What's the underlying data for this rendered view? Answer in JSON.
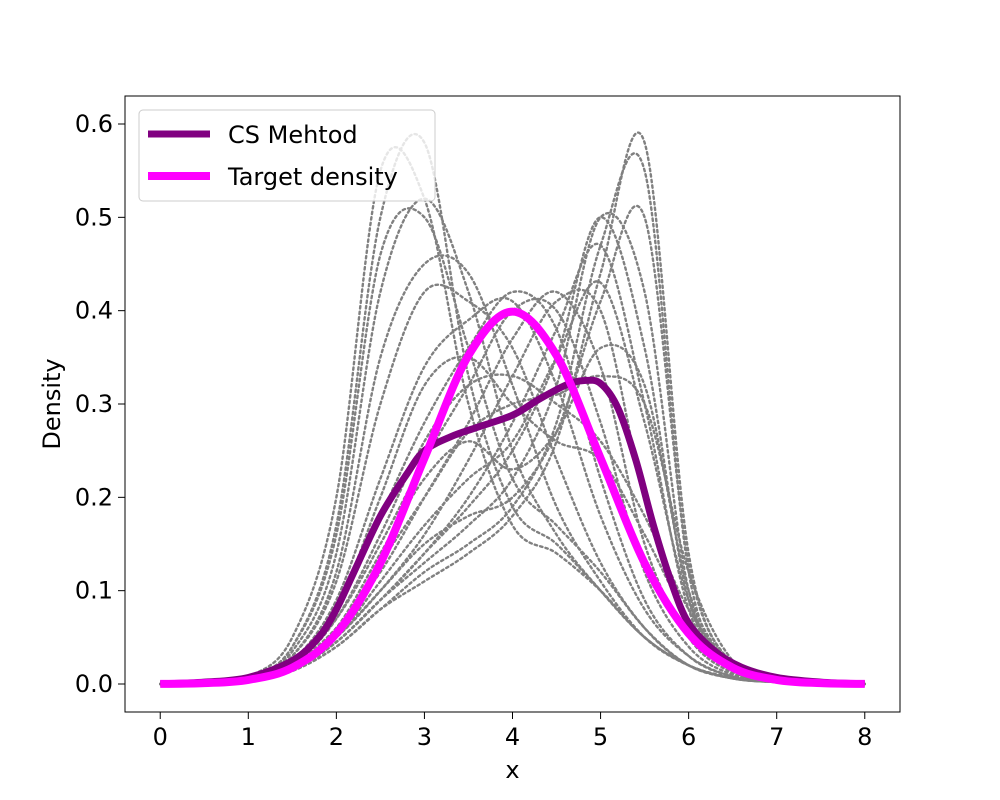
{
  "chart_data": {
    "type": "line",
    "title": "",
    "xlabel": "x",
    "ylabel": "Density",
    "xlim": [
      -0.4,
      8.4
    ],
    "ylim": [
      -0.03,
      0.63
    ],
    "x_ticks": [
      0,
      1,
      2,
      3,
      4,
      5,
      6,
      7,
      8
    ],
    "y_ticks": [
      0.0,
      0.1,
      0.2,
      0.3,
      0.4,
      0.5,
      0.6
    ],
    "x_tick_labels": [
      "0",
      "1",
      "2",
      "3",
      "4",
      "5",
      "6",
      "7",
      "8"
    ],
    "y_tick_labels": [
      "0.0",
      "0.1",
      "0.2",
      "0.3",
      "0.4",
      "0.5",
      "0.6"
    ],
    "grid": false,
    "legend_position": "top-left",
    "colors": {
      "cs_method": "#800080",
      "target_density": "#ff00ff",
      "samples": "#808080"
    },
    "series": [
      {
        "name": "CS Mehtod",
        "x": [
          0,
          0.5,
          1,
          1.5,
          1.8,
          2,
          2.2,
          2.5,
          2.8,
          3,
          3.3,
          3.6,
          4,
          4.3,
          4.6,
          4.8,
          5,
          5.2,
          5.4,
          5.6,
          5.8,
          6,
          6.3,
          6.6,
          7,
          7.5,
          8
        ],
        "y": [
          0.0,
          0.002,
          0.007,
          0.025,
          0.05,
          0.08,
          0.12,
          0.18,
          0.225,
          0.25,
          0.265,
          0.275,
          0.288,
          0.305,
          0.32,
          0.325,
          0.322,
          0.295,
          0.24,
          0.17,
          0.11,
          0.065,
          0.035,
          0.018,
          0.007,
          0.002,
          0.0
        ]
      },
      {
        "name": "Target density",
        "x": [
          0,
          0.5,
          1,
          1.5,
          2,
          2.5,
          3,
          3.5,
          4,
          4.5,
          5,
          5.5,
          6,
          6.5,
          7,
          7.5,
          8
        ],
        "y": [
          0.0001,
          0.0009,
          0.0044,
          0.0175,
          0.054,
          0.1295,
          0.242,
          0.352,
          0.399,
          0.352,
          0.242,
          0.1295,
          0.054,
          0.0175,
          0.0044,
          0.0009,
          0.0001
        ]
      }
    ],
    "sample_curves": {
      "x": [
        0,
        0.5,
        1,
        1.5,
        2,
        2.5,
        3,
        3.5,
        4,
        4.5,
        5,
        5.5,
        6,
        6.5,
        7,
        7.5,
        8
      ],
      "curves": [
        [
          0.0,
          0.002,
          0.008,
          0.05,
          0.2,
          0.55,
          0.52,
          0.3,
          0.17,
          0.14,
          0.1,
          0.05,
          0.02,
          0.007,
          0.003,
          0.001,
          0.0
        ],
        [
          0.0,
          0.002,
          0.007,
          0.04,
          0.17,
          0.5,
          0.58,
          0.33,
          0.19,
          0.15,
          0.1,
          0.05,
          0.02,
          0.006,
          0.002,
          0.001,
          0.0
        ],
        [
          0.0,
          0.002,
          0.006,
          0.035,
          0.14,
          0.42,
          0.52,
          0.42,
          0.25,
          0.16,
          0.1,
          0.05,
          0.02,
          0.006,
          0.002,
          0.001,
          0.0
        ],
        [
          0.0,
          0.002,
          0.006,
          0.03,
          0.12,
          0.35,
          0.45,
          0.44,
          0.32,
          0.19,
          0.11,
          0.05,
          0.02,
          0.006,
          0.002,
          0.001,
          0.0
        ],
        [
          0.0,
          0.002,
          0.006,
          0.03,
          0.11,
          0.3,
          0.42,
          0.41,
          0.36,
          0.24,
          0.13,
          0.06,
          0.02,
          0.007,
          0.002,
          0.001,
          0.0
        ],
        [
          0.0,
          0.001,
          0.005,
          0.025,
          0.09,
          0.22,
          0.34,
          0.39,
          0.41,
          0.32,
          0.18,
          0.08,
          0.03,
          0.008,
          0.002,
          0.001,
          0.0
        ],
        [
          0.0,
          0.001,
          0.005,
          0.025,
          0.08,
          0.18,
          0.28,
          0.36,
          0.42,
          0.38,
          0.22,
          0.09,
          0.03,
          0.008,
          0.002,
          0.001,
          0.0
        ],
        [
          0.0,
          0.001,
          0.005,
          0.022,
          0.07,
          0.15,
          0.24,
          0.32,
          0.4,
          0.4,
          0.28,
          0.12,
          0.04,
          0.01,
          0.003,
          0.001,
          0.0
        ],
        [
          0.0,
          0.001,
          0.005,
          0.02,
          0.06,
          0.12,
          0.2,
          0.28,
          0.37,
          0.42,
          0.34,
          0.15,
          0.05,
          0.012,
          0.003,
          0.001,
          0.0
        ],
        [
          0.0,
          0.001,
          0.004,
          0.018,
          0.05,
          0.1,
          0.16,
          0.24,
          0.33,
          0.41,
          0.4,
          0.2,
          0.06,
          0.015,
          0.003,
          0.001,
          0.0
        ],
        [
          0.0,
          0.001,
          0.004,
          0.015,
          0.045,
          0.09,
          0.14,
          0.2,
          0.28,
          0.38,
          0.47,
          0.3,
          0.08,
          0.015,
          0.003,
          0.001,
          0.0
        ],
        [
          0.0,
          0.001,
          0.004,
          0.015,
          0.045,
          0.09,
          0.13,
          0.17,
          0.22,
          0.32,
          0.5,
          0.42,
          0.1,
          0.02,
          0.004,
          0.001,
          0.0
        ],
        [
          0.0,
          0.001,
          0.004,
          0.014,
          0.04,
          0.08,
          0.12,
          0.15,
          0.19,
          0.28,
          0.47,
          0.55,
          0.12,
          0.02,
          0.004,
          0.001,
          0.0
        ],
        [
          0.0,
          0.001,
          0.004,
          0.014,
          0.04,
          0.08,
          0.11,
          0.14,
          0.18,
          0.26,
          0.44,
          0.58,
          0.14,
          0.02,
          0.004,
          0.001,
          0.0
        ],
        [
          0.0,
          0.001,
          0.004,
          0.015,
          0.05,
          0.1,
          0.15,
          0.18,
          0.2,
          0.27,
          0.41,
          0.5,
          0.13,
          0.02,
          0.004,
          0.001,
          0.0
        ],
        [
          0.0,
          0.001,
          0.005,
          0.02,
          0.06,
          0.13,
          0.2,
          0.27,
          0.3,
          0.31,
          0.33,
          0.3,
          0.12,
          0.025,
          0.005,
          0.001,
          0.0
        ],
        [
          0.0,
          0.001,
          0.005,
          0.02,
          0.07,
          0.16,
          0.26,
          0.32,
          0.33,
          0.3,
          0.26,
          0.18,
          0.08,
          0.02,
          0.004,
          0.001,
          0.0
        ],
        [
          0.0,
          0.001,
          0.005,
          0.02,
          0.06,
          0.14,
          0.22,
          0.26,
          0.23,
          0.27,
          0.36,
          0.32,
          0.1,
          0.02,
          0.004,
          0.001,
          0.0
        ],
        [
          0.0,
          0.001,
          0.005,
          0.02,
          0.08,
          0.2,
          0.32,
          0.35,
          0.3,
          0.26,
          0.24,
          0.16,
          0.07,
          0.02,
          0.004,
          0.001,
          0.0
        ],
        [
          0.0,
          0.001,
          0.004,
          0.016,
          0.05,
          0.11,
          0.17,
          0.22,
          0.26,
          0.35,
          0.43,
          0.28,
          0.09,
          0.02,
          0.004,
          0.001,
          0.0
        ],
        [
          0.0,
          0.002,
          0.007,
          0.04,
          0.16,
          0.46,
          0.5,
          0.36,
          0.22,
          0.17,
          0.12,
          0.06,
          0.02,
          0.006,
          0.002,
          0.001,
          0.0
        ],
        [
          0.0,
          0.001,
          0.004,
          0.015,
          0.045,
          0.09,
          0.14,
          0.19,
          0.25,
          0.35,
          0.5,
          0.36,
          0.09,
          0.02,
          0.004,
          0.001,
          0.0
        ]
      ]
    }
  }
}
